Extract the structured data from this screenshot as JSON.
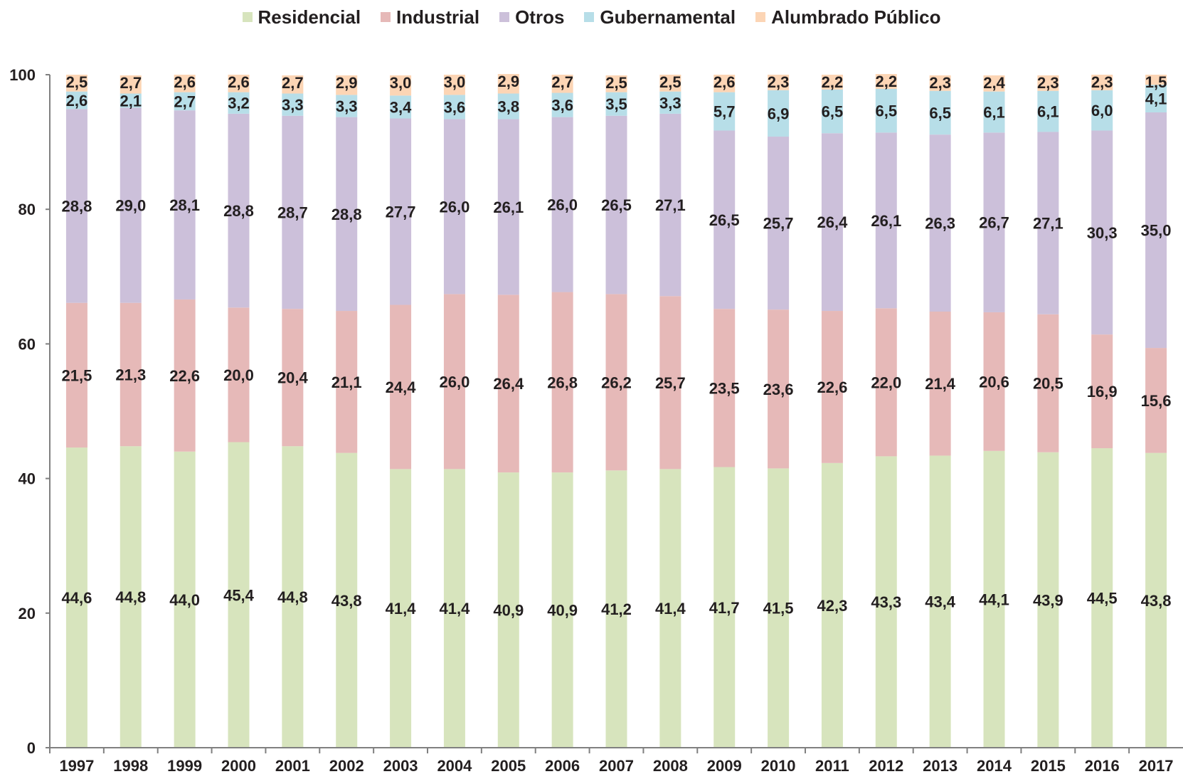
{
  "chart_data": {
    "type": "bar",
    "stacked": true,
    "legend_position": "top",
    "grid": false,
    "ylim": [
      0,
      100
    ],
    "yticks": [
      0,
      20,
      40,
      60,
      80,
      100
    ],
    "categories": [
      "1997",
      "1998",
      "1999",
      "2000",
      "2001",
      "2002",
      "2003",
      "2004",
      "2005",
      "2006",
      "2007",
      "2008",
      "2009",
      "2010",
      "2011",
      "2012",
      "2013",
      "2014",
      "2015",
      "2016",
      "2017"
    ],
    "series": [
      {
        "name": "Residencial",
        "color": "#d7e4bd",
        "values": [
          44.6,
          44.8,
          44.0,
          45.4,
          44.8,
          43.8,
          41.4,
          41.4,
          40.9,
          40.9,
          41.2,
          41.4,
          41.7,
          41.5,
          42.3,
          43.3,
          43.4,
          44.1,
          43.9,
          44.5,
          43.8
        ],
        "labels": [
          "44,6",
          "44,8",
          "44,0",
          "45,4",
          "44,8",
          "43,8",
          "41,4",
          "41,4",
          "40,9",
          "40,9",
          "41,2",
          "41,4",
          "41,7",
          "41,5",
          "42,3",
          "43,3",
          "43,4",
          "44,1",
          "43,9",
          "44,5",
          "43,8"
        ]
      },
      {
        "name": "Industrial",
        "color": "#e6b9b8",
        "values": [
          21.5,
          21.3,
          22.6,
          20.0,
          20.4,
          21.1,
          24.4,
          26.0,
          26.4,
          26.8,
          26.2,
          25.7,
          23.5,
          23.6,
          22.6,
          22.0,
          21.4,
          20.6,
          20.5,
          16.9,
          15.6
        ],
        "labels": [
          "21,5",
          "21,3",
          "22,6",
          "20,0",
          "20,4",
          "21,1",
          "24,4",
          "26,0",
          "26,4",
          "26,8",
          "26,2",
          "25,7",
          "23,5",
          "23,6",
          "22,6",
          "22,0",
          "21,4",
          "20,6",
          "20,5",
          "16,9",
          "15,6"
        ]
      },
      {
        "name": "Otros",
        "color": "#ccc0da",
        "values": [
          28.8,
          29.0,
          28.1,
          28.8,
          28.7,
          28.8,
          27.7,
          26.0,
          26.1,
          26.0,
          26.5,
          27.1,
          26.5,
          25.7,
          26.4,
          26.1,
          26.3,
          26.7,
          27.1,
          30.3,
          35.0
        ],
        "labels": [
          "28,8",
          "29,0",
          "28,1",
          "28,8",
          "28,7",
          "28,8",
          "27,7",
          "26,0",
          "26,1",
          "26,0",
          "26,5",
          "27,1",
          "26,5",
          "25,7",
          "26,4",
          "26,1",
          "26,3",
          "26,7",
          "27,1",
          "30,3",
          "35,0"
        ]
      },
      {
        "name": "Gubernamental",
        "color": "#b7dee8",
        "values": [
          2.6,
          2.1,
          2.7,
          3.2,
          3.3,
          3.3,
          3.4,
          3.6,
          3.8,
          3.6,
          3.5,
          3.3,
          5.7,
          6.9,
          6.5,
          6.5,
          6.5,
          6.1,
          6.1,
          6.0,
          4.1
        ],
        "labels": [
          "2,6",
          "2,1",
          "2,7",
          "3,2",
          "3,3",
          "3,3",
          "3,4",
          "3,6",
          "3,8",
          "3,6",
          "3,5",
          "3,3",
          "5,7",
          "6,9",
          "6,5",
          "6,5",
          "6,5",
          "6,1",
          "6,1",
          "6,0",
          "4,1"
        ]
      },
      {
        "name": "Alumbrado Público",
        "color": "#fcd5b5",
        "values": [
          2.5,
          2.7,
          2.6,
          2.6,
          2.7,
          2.9,
          3.0,
          3.0,
          2.9,
          2.7,
          2.5,
          2.5,
          2.6,
          2.3,
          2.2,
          2.2,
          2.3,
          2.4,
          2.3,
          2.3,
          1.5
        ],
        "labels": [
          "2,5",
          "2,7",
          "2,6",
          "2,6",
          "2,7",
          "2,9",
          "3,0",
          "3,0",
          "2,9",
          "2,7",
          "2,5",
          "2,5",
          "2,6",
          "2,3",
          "2,2",
          "2,2",
          "2,3",
          "2,4",
          "2,3",
          "2,3",
          "1,5"
        ]
      }
    ],
    "axis_color": "#808080",
    "text_color": "#231f20"
  }
}
